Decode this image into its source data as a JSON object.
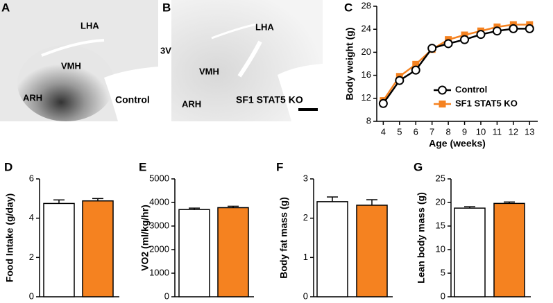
{
  "images": [
    {
      "panel_label": "A",
      "labels": [
        "LHA",
        "VMH",
        "ARH"
      ],
      "caption": "Control"
    },
    {
      "panel_label": "B",
      "labels": [
        "3V",
        "LHA",
        "VMH",
        "ARH"
      ],
      "caption": "SF1 STAT5 KO"
    }
  ],
  "chart_data": [
    {
      "type": "line",
      "panel_label": "C",
      "y_label": "Body weight (g)",
      "x_label": "Age (weeks)",
      "x": [
        4,
        5,
        6,
        7,
        8,
        9,
        10,
        11,
        12,
        13
      ],
      "xlim": [
        3.6,
        13.5
      ],
      "xticks": [
        4,
        5,
        6,
        7,
        8,
        9,
        10,
        11,
        12,
        13
      ],
      "ylim": [
        8,
        28
      ],
      "yticks": [
        8,
        12,
        16,
        20,
        24,
        28
      ],
      "series": [
        {
          "name": "Control",
          "color": "#000000",
          "marker": "circle-open",
          "values": [
            11.1,
            15.1,
            16.9,
            20.7,
            21.5,
            22.2,
            23.1,
            23.7,
            24.1,
            24.1
          ],
          "errors": [
            0.3,
            0.4,
            0.4,
            0.5,
            0.4,
            0.4,
            0.4,
            0.4,
            0.5,
            0.4
          ]
        },
        {
          "name": "SF1 STAT5 KO",
          "color": "#f58220",
          "marker": "square",
          "values": [
            11.6,
            15.8,
            17.9,
            20.5,
            22.2,
            23.0,
            23.7,
            24.4,
            24.8,
            24.8
          ],
          "errors": [
            0.3,
            0.4,
            0.5,
            0.4,
            0.5,
            0.6,
            0.5,
            0.5,
            0.6,
            0.5
          ]
        }
      ]
    },
    {
      "type": "bar",
      "panel_label": "D",
      "y_label": "Food Intake (g/day)",
      "categories": [
        null,
        null
      ],
      "values": [
        4.75,
        4.88
      ],
      "errors": [
        0.18,
        0.12
      ],
      "colors": [
        "#ffffff",
        "#f58220"
      ],
      "ylim": [
        0,
        6
      ],
      "yticks": [
        0,
        2,
        4,
        6
      ]
    },
    {
      "type": "bar",
      "panel_label": "E",
      "y_label": "VO2 (ml/kg/hr)",
      "categories": [
        null,
        null
      ],
      "values": [
        3700,
        3780
      ],
      "errors": [
        60,
        60
      ],
      "colors": [
        "#ffffff",
        "#f58220"
      ],
      "ylim": [
        0,
        5000
      ],
      "yticks": [
        0,
        1000,
        2000,
        3000,
        4000,
        5000
      ]
    },
    {
      "type": "bar",
      "panel_label": "F",
      "y_label": "Body fat mass (g)",
      "categories": [
        null,
        null
      ],
      "values": [
        2.42,
        2.33
      ],
      "errors": [
        0.12,
        0.14
      ],
      "colors": [
        "#ffffff",
        "#f58220"
      ],
      "ylim": [
        0,
        3
      ],
      "yticks": [
        0,
        1,
        2,
        3
      ]
    },
    {
      "type": "bar",
      "panel_label": "G",
      "y_label": "Lean body mass (g)",
      "categories": [
        null,
        null
      ],
      "values": [
        18.8,
        19.8
      ],
      "errors": [
        0.3,
        0.3
      ],
      "colors": [
        "#ffffff",
        "#f58220"
      ],
      "ylim": [
        0,
        25
      ],
      "yticks": [
        0,
        5,
        10,
        15,
        20,
        25
      ]
    }
  ]
}
